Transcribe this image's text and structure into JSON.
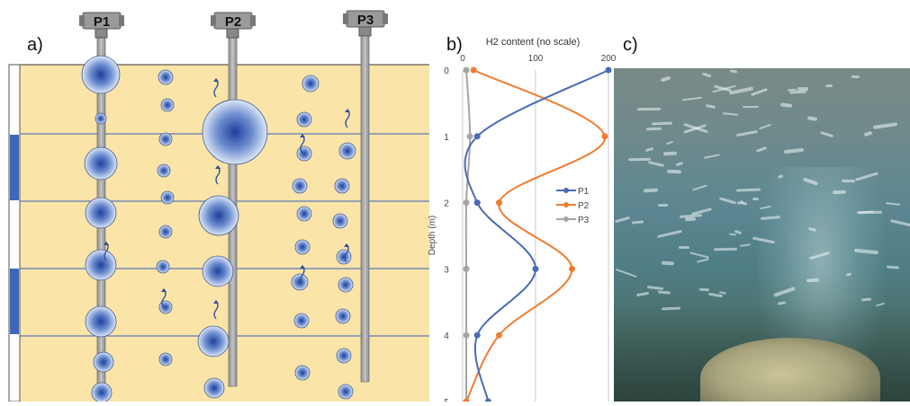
{
  "panels": {
    "a": "a)",
    "b": "b)",
    "c": "c)"
  },
  "piezometers": [
    "P1",
    "P2",
    "P3"
  ],
  "colors": {
    "sediment": "#fbe4a8",
    "bubble_core": "#3153a8",
    "pipe": "#a0a0a0",
    "p1": "#4a6bb5",
    "p2": "#ee7d31",
    "p3": "#a5a5a5"
  },
  "chart_data": {
    "type": "line",
    "title": "H2 content (no scale)",
    "xlabel": "H2 content (no scale)",
    "ylabel": "Depth (m)",
    "xlim": [
      0,
      200
    ],
    "ylim": [
      0,
      5
    ],
    "y_inverted": true,
    "x_ticks": [
      "0",
      "100",
      "200"
    ],
    "y_ticks": [
      "0",
      "1",
      "2",
      "3",
      "4",
      "5"
    ],
    "grid": "vertical",
    "legend_position": "right",
    "series": [
      {
        "name": "P1",
        "color": "#4a6bb5",
        "x": [
          200,
          20,
          20,
          100,
          20,
          35
        ],
        "y": [
          0,
          1,
          2,
          3,
          4,
          5
        ]
      },
      {
        "name": "P2",
        "color": "#ee7d31",
        "x": [
          15,
          195,
          50,
          150,
          50,
          5
        ],
        "y": [
          0,
          1,
          2,
          3,
          4,
          5
        ]
      },
      {
        "name": "P3",
        "color": "#a5a5a5",
        "x": [
          5,
          10,
          5,
          5,
          5,
          5
        ],
        "y": [
          0,
          1,
          2,
          3,
          4,
          5
        ]
      }
    ]
  }
}
